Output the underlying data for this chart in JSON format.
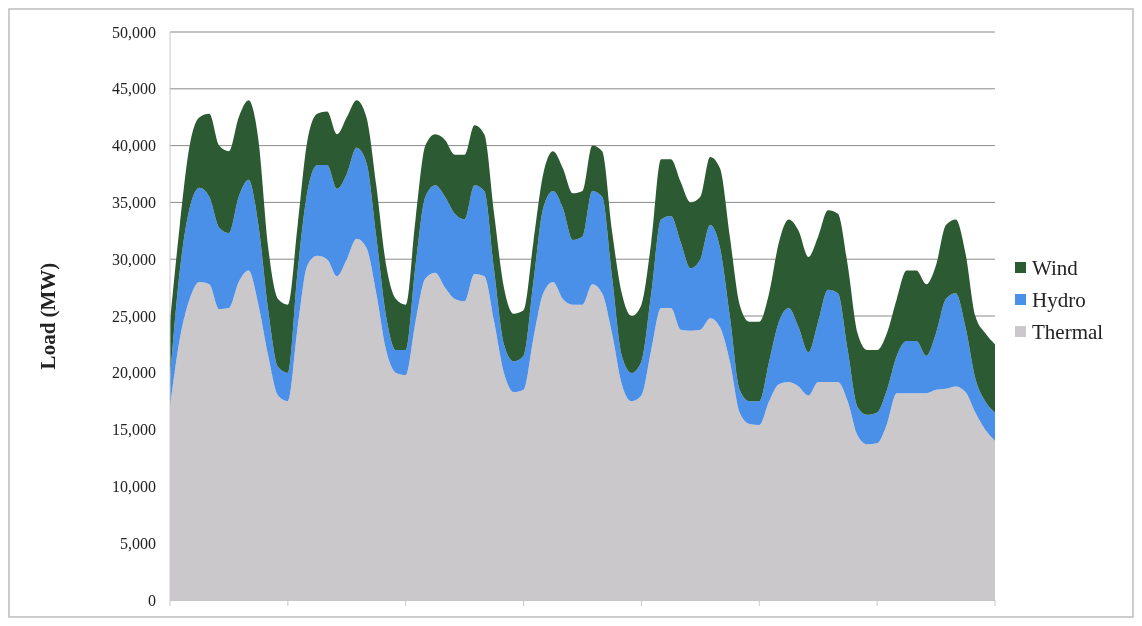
{
  "chart_data": {
    "type": "area",
    "stacked": true,
    "ylabel": "Load (MW)",
    "categories": [
      null,
      null,
      null,
      null,
      null,
      null,
      null,
      null,
      null,
      null,
      null,
      null,
      null,
      null,
      null,
      null,
      null,
      null,
      null,
      null,
      null,
      null,
      null,
      null,
      null,
      null,
      null,
      null,
      null,
      null,
      null,
      null,
      null,
      null,
      null,
      null,
      null,
      null,
      null,
      null,
      null,
      null,
      null,
      null,
      null,
      null,
      null,
      null,
      null,
      null,
      null,
      null,
      null,
      null,
      null,
      null,
      null,
      null,
      null,
      null,
      null,
      null,
      null,
      null,
      null,
      null,
      null,
      null,
      null,
      null,
      null,
      null,
      null,
      null,
      null,
      null,
      null,
      null,
      null,
      null,
      null,
      null,
      null,
      null,
      null
    ],
    "series": [
      {
        "name": "Thermal",
        "color": "#cbc8cc",
        "values": [
          17000,
          23000,
          26500,
          28000,
          27800,
          25600,
          25700,
          28000,
          29000,
          26000,
          21500,
          18000,
          17500,
          24000,
          29500,
          30300,
          30000,
          28500,
          30000,
          31800,
          31000,
          27000,
          22000,
          20000,
          19800,
          24500,
          28300,
          28800,
          27500,
          26500,
          26300,
          28700,
          28500,
          24500,
          20000,
          18300,
          18500,
          23000,
          27000,
          28000,
          26500,
          26000,
          26000,
          27800,
          27000,
          23500,
          19000,
          17500,
          18000,
          22000,
          25700,
          25700,
          23800,
          23700,
          23800,
          24800,
          24000,
          21000,
          16500,
          15500,
          15400,
          17500,
          19000,
          19200,
          18800,
          18000,
          19200,
          19200,
          19200,
          17500,
          14500,
          13700,
          13800,
          15500,
          18200,
          18200,
          18200,
          18200,
          18500,
          18600,
          18800,
          18300,
          16500,
          15000,
          14000
        ]
      },
      {
        "name": "Hydro",
        "color": "#4a8fe8",
        "values": [
          2500,
          6000,
          8000,
          8300,
          7700,
          7200,
          6600,
          7500,
          8000,
          7000,
          4000,
          2500,
          2500,
          5000,
          6500,
          8000,
          8300,
          7700,
          7500,
          8000,
          7500,
          5000,
          3000,
          2000,
          2200,
          5000,
          7200,
          7700,
          8000,
          7500,
          7200,
          7800,
          7500,
          4500,
          2500,
          2700,
          3000,
          5000,
          7500,
          8000,
          8000,
          5700,
          6000,
          8200,
          8500,
          5000,
          2500,
          2500,
          3000,
          5000,
          7800,
          8100,
          7700,
          5500,
          6200,
          8200,
          7000,
          4000,
          2000,
          2000,
          2100,
          3500,
          5500,
          6500,
          5200,
          3800,
          5300,
          8100,
          7800,
          4500,
          2500,
          2600,
          2700,
          3000,
          3300,
          4600,
          4600,
          3300,
          5000,
          7900,
          8200,
          5700,
          3000,
          2500,
          2500
        ]
      },
      {
        "name": "Wind",
        "color": "#2c5a32",
        "values": [
          5000,
          4000,
          5500,
          6200,
          7300,
          7200,
          7200,
          7000,
          7000,
          7500,
          5500,
          6000,
          6000,
          4000,
          4500,
          4500,
          4700,
          4800,
          5000,
          4200,
          4000,
          4500,
          4500,
          4500,
          4000,
          4000,
          4500,
          4500,
          5000,
          5200,
          5700,
          5300,
          5000,
          5000,
          5000,
          4200,
          4000,
          3500,
          3000,
          3500,
          3500,
          4100,
          4000,
          4000,
          4000,
          4000,
          5500,
          5000,
          5000,
          4500,
          5300,
          5000,
          5300,
          5800,
          5500,
          6000,
          7000,
          7000,
          7500,
          7000,
          7000,
          6000,
          7000,
          7800,
          8500,
          8400,
          7500,
          7000,
          7000,
          7500,
          6500,
          5700,
          5500,
          5000,
          5000,
          6200,
          6200,
          6300,
          6000,
          6500,
          6500,
          6500,
          5500,
          6000,
          6000
        ]
      }
    ],
    "ylim": [
      0,
      50000
    ],
    "yticks": [
      {
        "value": 0,
        "label": "0"
      },
      {
        "value": 5000,
        "label": "5,000"
      },
      {
        "value": 10000,
        "label": "10,000"
      },
      {
        "value": 15000,
        "label": "15,000"
      },
      {
        "value": 20000,
        "label": "20,000"
      },
      {
        "value": 25000,
        "label": "25,000"
      },
      {
        "value": 30000,
        "label": "30,000"
      },
      {
        "value": 35000,
        "label": "35,000"
      },
      {
        "value": 40000,
        "label": "40,000"
      },
      {
        "value": 45000,
        "label": "45,000"
      },
      {
        "value": 50000,
        "label": "50,000"
      }
    ],
    "grid": "y",
    "legend": "right",
    "tick_labels": "y"
  }
}
